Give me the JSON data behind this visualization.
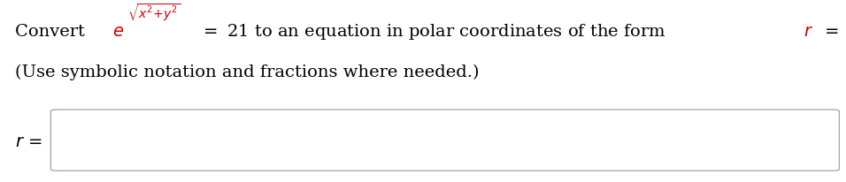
{
  "bg_color": "#ffffff",
  "line2": "(Use symbolic notation and fractions where needed.)",
  "figsize": [
    9.56,
    2.06
  ],
  "dpi": 100,
  "fs_main": 14,
  "fs_super": 9,
  "red": "#cc0000",
  "black": "#000000",
  "gray_box": "#aaaaaa"
}
